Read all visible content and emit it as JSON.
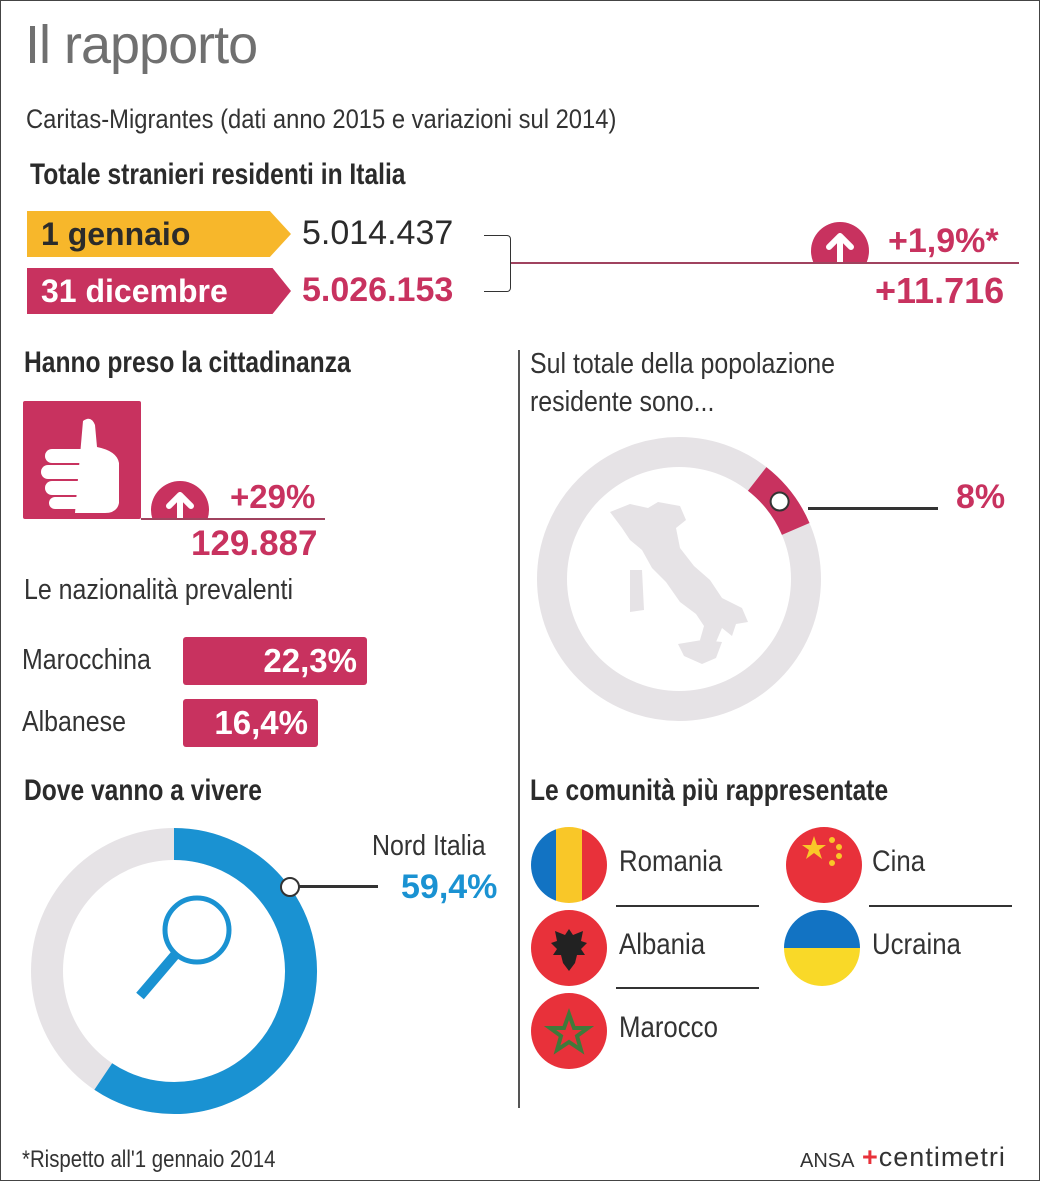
{
  "header": {
    "title": "Il rapporto",
    "subtitle": "Caritas-Migrantes (dati anno 2015 e variazioni sul 2014)"
  },
  "totale": {
    "heading": "Totale stranieri residenti in Italia",
    "start_label": "1 gennaio",
    "start_value": "5.014.437",
    "end_label": "31 dicembre",
    "end_value": "5.026.153",
    "change_pct": "+1,9%*",
    "change_abs": "+11.716",
    "arrow_icon": "arrow-up-icon"
  },
  "cittadinanza": {
    "heading": "Hanno preso la cittadinanza",
    "icon": "thumbs-up-icon",
    "change_pct": "+29%",
    "value": "129.887",
    "nationalities_heading": "Le nazionalità prevalenti",
    "nationalities": [
      {
        "label": "Marocchina",
        "value": "22,3%",
        "share": 22.3
      },
      {
        "label": "Albanese",
        "value": "16,4%",
        "share": 16.4
      }
    ]
  },
  "popolazione": {
    "heading_line1": "Sul totale della popolazione",
    "heading_line2": "residente sono...",
    "value": "8%",
    "share": 8,
    "icon": "italy-map-icon"
  },
  "dove": {
    "heading": "Dove vanno a vivere",
    "label": "Nord Italia",
    "value": "59,4%",
    "share": 59.4,
    "icon": "magnifier-icon"
  },
  "comunita": {
    "heading": "Le comunità più rappresentate",
    "items": [
      {
        "name": "Romania",
        "icon": "romania-flag-icon"
      },
      {
        "name": "Albania",
        "icon": "albania-flag-icon"
      },
      {
        "name": "Marocco",
        "icon": "morocco-flag-icon"
      },
      {
        "name": "Cina",
        "icon": "china-flag-icon"
      },
      {
        "name": "Ucraina",
        "icon": "ukraine-flag-icon"
      }
    ]
  },
  "footer": {
    "note": "*Rispetto all'1 gennaio 2014",
    "brand_ansa": "ANSA",
    "brand_centimetri": "centimetri"
  },
  "colors": {
    "magenta": "#c8325f",
    "yellow": "#f7b72b",
    "blue": "#1a92d2",
    "ring_gray": "#e6e3e6"
  }
}
